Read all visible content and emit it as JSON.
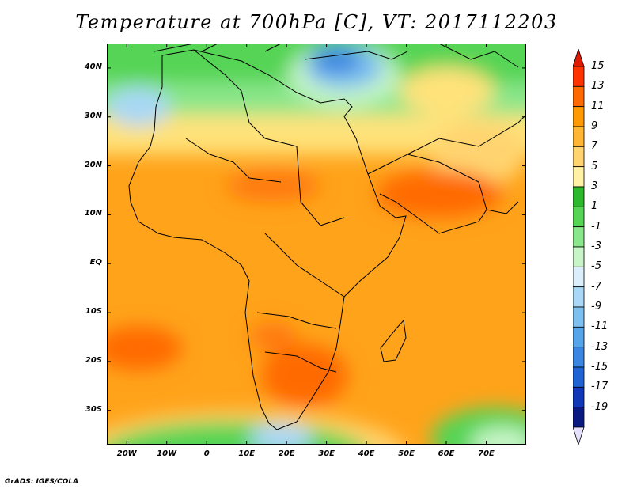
{
  "title": "Temperature at 700hPa [C], VT: 2017112203",
  "credit": "GrADS: IGES/COLA",
  "map": {
    "lon_range": [
      -25,
      80
    ],
    "lat_range": [
      -37,
      45
    ],
    "lat_ticks": [
      {
        "value": 40,
        "label": "40N"
      },
      {
        "value": 30,
        "label": "30N"
      },
      {
        "value": 20,
        "label": "20N"
      },
      {
        "value": 10,
        "label": "10N"
      },
      {
        "value": 0,
        "label": "EQ"
      },
      {
        "value": -10,
        "label": "10S"
      },
      {
        "value": -20,
        "label": "20S"
      },
      {
        "value": -30,
        "label": "30S"
      }
    ],
    "lon_ticks": [
      {
        "value": -20,
        "label": "20W"
      },
      {
        "value": -10,
        "label": "10W"
      },
      {
        "value": 0,
        "label": "0"
      },
      {
        "value": 10,
        "label": "10E"
      },
      {
        "value": 20,
        "label": "20E"
      },
      {
        "value": 30,
        "label": "30E"
      },
      {
        "value": 40,
        "label": "40E"
      },
      {
        "value": 50,
        "label": "50E"
      },
      {
        "value": 60,
        "label": "60E"
      },
      {
        "value": 70,
        "label": "70E"
      }
    ]
  },
  "colorbar": {
    "levels": [
      "15",
      "13",
      "11",
      "9",
      "7",
      "5",
      "3",
      "1",
      "-1",
      "-3",
      "-5",
      "-7",
      "-9",
      "-11",
      "-13",
      "-15",
      "-17",
      "-19"
    ],
    "colors": [
      "#ff3300",
      "#ff6a00",
      "#ff9a00",
      "#ffb733",
      "#ffd470",
      "#fff1a6",
      "#2eb82e",
      "#55d455",
      "#8ae68a",
      "#c8f5c8",
      "#dbeefb",
      "#a8d8f5",
      "#7dc0ef",
      "#55a5e8",
      "#3a86e0",
      "#1f63d4",
      "#1038b8",
      "#0a1a80"
    ],
    "top_arrow_color": "#e01a00",
    "bottom_arrow_color": "#e6e0ff"
  }
}
